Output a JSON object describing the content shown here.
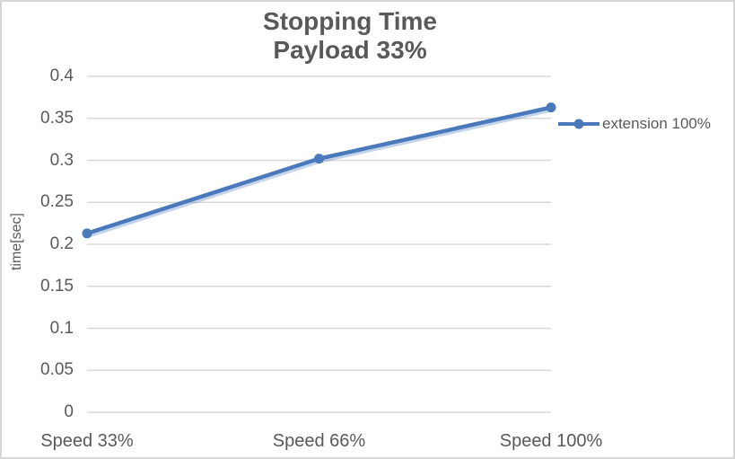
{
  "window": {
    "background": "#ffffff",
    "border_color": "#d7d7d7",
    "text_color": "#595959"
  },
  "title": {
    "line1": "Stopping Time",
    "line2": "Payload 33%"
  },
  "chart_data": {
    "type": "line",
    "title": "Stopping Time Payload 33%",
    "categories": [
      "Speed 33%",
      "Speed 66%",
      "Speed 100%"
    ],
    "series": [
      {
        "name": "extension 100%",
        "values": [
          0.213,
          0.302,
          0.363
        ],
        "color": "#4a79bc",
        "marker": "circle"
      }
    ],
    "xlabel": "",
    "ylabel": "time[sec]",
    "ylim": [
      0,
      0.4
    ],
    "ytick_step": 0.05,
    "ytick_labels": [
      "0",
      "0.05",
      "0.1",
      "0.15",
      "0.2",
      "0.25",
      "0.3",
      "0.35",
      "0.4"
    ],
    "grid": "horizontal",
    "gridline_color": "#d9d9d9",
    "legend_position": "right"
  }
}
